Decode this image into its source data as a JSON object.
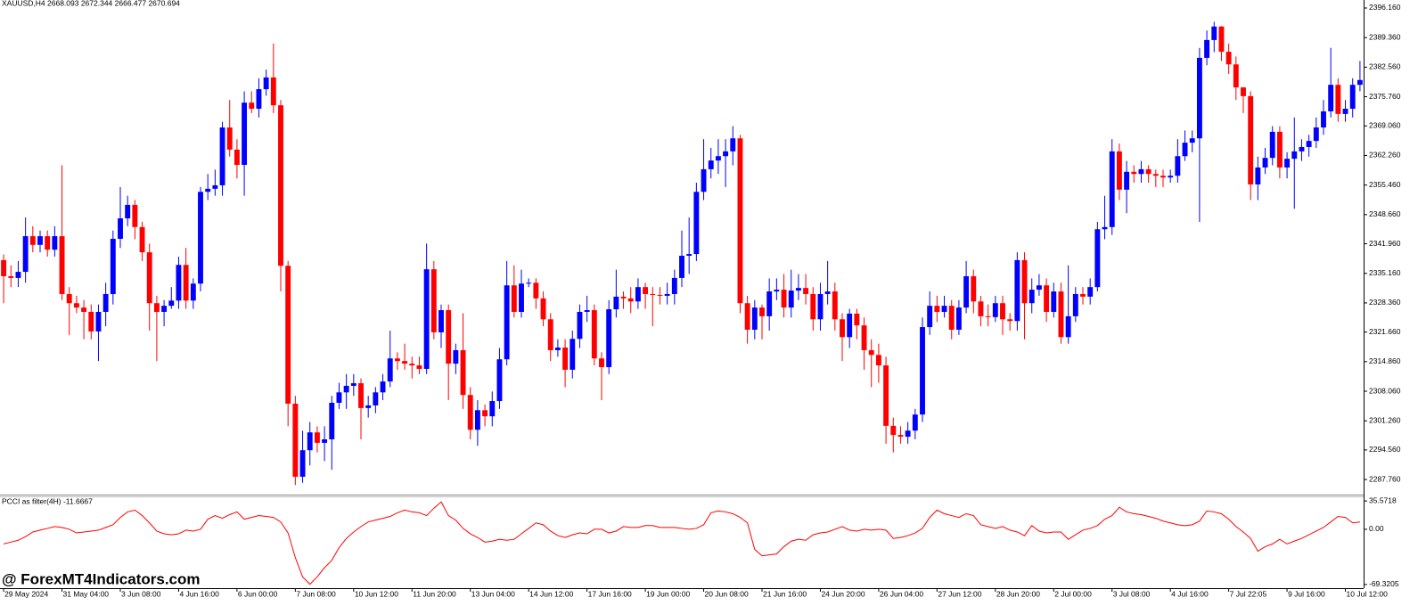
{
  "watermark": "@ ForexMT4Indicators.com",
  "chart_data": [
    {
      "type": "candlestick",
      "title": "XAUUSD,H4  2668.093 2672.344 2666.477 2670.694",
      "up_color": "#0000ff",
      "down_color": "#ff0000",
      "grid": false,
      "xlim": [
        -0.5,
        186.5
      ],
      "xticks": [
        {
          "value": 0,
          "label": "29 May 2024"
        },
        {
          "value": 8,
          "label": "31 May 04:00"
        },
        {
          "value": 16,
          "label": "3 Jun 08:00"
        },
        {
          "value": 24,
          "label": "4 Jun 16:00"
        },
        {
          "value": 32,
          "label": "6 Jun 00:00"
        },
        {
          "value": 40,
          "label": "7 Jun 08:00"
        },
        {
          "value": 48,
          "label": "10 Jun 12:00"
        },
        {
          "value": 56,
          "label": "11 Jun 20:00"
        },
        {
          "value": 64,
          "label": "13 Jun 04:00"
        },
        {
          "value": 72,
          "label": "14 Jun 12:00"
        },
        {
          "value": 80,
          "label": "17 Jun 16:00"
        },
        {
          "value": 88,
          "label": "19 Jun 00:00"
        },
        {
          "value": 96,
          "label": "20 Jun 08:00"
        },
        {
          "value": 104,
          "label": "21 Jun 16:00"
        },
        {
          "value": 112,
          "label": "24 Jun 20:00"
        },
        {
          "value": 120,
          "label": "26 Jun 04:00"
        },
        {
          "value": 128,
          "label": "27 Jun 12:00"
        },
        {
          "value": 136,
          "label": "28 Jun 20:00"
        },
        {
          "value": 144,
          "label": "2 Jul 00:00"
        },
        {
          "value": 152,
          "label": "3 Jul 08:00"
        },
        {
          "value": 160,
          "label": "4 Jul 16:00"
        },
        {
          "value": 168,
          "label": "7 Jul 22:05"
        },
        {
          "value": 176,
          "label": "9 Jul 16:00"
        },
        {
          "value": 184,
          "label": "10 Jul 12:00"
        }
      ],
      "ylim": [
        2284.3,
        2398.0
      ],
      "yticks": [
        {
          "value": 2396.16,
          "label": "2396.160"
        },
        {
          "value": 2389.36,
          "label": "2389.360"
        },
        {
          "value": 2382.56,
          "label": "2382.560"
        },
        {
          "value": 2375.76,
          "label": "2375.760"
        },
        {
          "value": 2369.06,
          "label": "2369.060"
        },
        {
          "value": 2362.26,
          "label": "2362.260"
        },
        {
          "value": 2355.46,
          "label": "2355.460"
        },
        {
          "value": 2348.66,
          "label": "2348.660"
        },
        {
          "value": 2341.96,
          "label": "2341.960"
        },
        {
          "value": 2335.16,
          "label": "2335.160"
        },
        {
          "value": 2328.36,
          "label": "2328.360"
        },
        {
          "value": 2321.66,
          "label": "2321.660"
        },
        {
          "value": 2314.86,
          "label": "2314.860"
        },
        {
          "value": 2308.06,
          "label": "2308.060"
        },
        {
          "value": 2301.26,
          "label": "2301.260"
        },
        {
          "value": 2294.56,
          "label": "2294.560"
        },
        {
          "value": 2287.76,
          "label": "2287.760"
        }
      ],
      "open": [
        2338.2,
        2334.5,
        2334.1,
        2335.5,
        2343.7,
        2341.7,
        2343.7,
        2340.6,
        2343.7,
        2330.4,
        2328.3,
        2327.3,
        2326.3,
        2321.8,
        2326.3,
        2330.4,
        2343.1,
        2347.8,
        2350.9,
        2345.8,
        2340.0,
        2328.3,
        2326.3,
        2327.7,
        2328.9,
        2337.1,
        2328.9,
        2332.8,
        2353.9,
        2354.6,
        2355.4,
        2368.7,
        2363.6,
        2360.1,
        2374.4,
        2373.0,
        2377.5,
        2380.2,
        2373.8,
        2336.9,
        2305.2,
        2288.4,
        2294.5,
        2298.6,
        2296.2,
        2297.0,
        2305.4,
        2307.8,
        2309.3,
        2309.9,
        2304.2,
        2304.8,
        2307.8,
        2310.3,
        2315.6,
        2315.0,
        2314.4,
        2314.0,
        2313.2,
        2336.1,
        2321.6,
        2326.7,
        2314.4,
        2317.5,
        2307.2,
        2299.2,
        2303.7,
        2302.3,
        2305.8,
        2315.4,
        2332.4,
        2326.3,
        2332.8,
        2333.0,
        2329.4,
        2324.6,
        2317.5,
        2318.1,
        2313.0,
        2320.1,
        2326.3,
        2326.7,
        2315.6,
        2313.6,
        2326.9,
        2329.8,
        2329.4,
        2328.7,
        2332.0,
        2330.4,
        2330.2,
        2330.0,
        2330.4,
        2334.1,
        2339.2,
        2339.6,
        2353.9,
        2359.1,
        2361.1,
        2362.1,
        2363.2,
        2366.2,
        2328.3,
        2322.2,
        2327.3,
        2325.3,
        2331.0,
        2331.4,
        2327.3,
        2331.2,
        2331.8,
        2330.4,
        2324.6,
        2330.4,
        2331.0,
        2324.6,
        2320.5,
        2325.9,
        2323.2,
        2317.5,
        2316.4,
        2314.0,
        2300.1,
        2298.0,
        2297.6,
        2299.0,
        2302.7,
        2322.8,
        2327.7,
        2326.3,
        2327.7,
        2322.2,
        2327.3,
        2334.5,
        2328.7,
        2325.3,
        2325.1,
        2328.3,
        2324.6,
        2324.2,
        2338.2,
        2328.3,
        2331.4,
        2332.4,
        2326.3,
        2331.0,
        2320.5,
        2325.3,
        2330.4,
        2329.8,
        2332.0,
        2345.3,
        2345.8,
        2363.2,
        2354.4,
        2358.5,
        2358.0,
        2359.1,
        2358.0,
        2357.6,
        2357.2,
        2357.6,
        2362.1,
        2365.2,
        2366.2,
        2384.7,
        2388.8,
        2391.9,
        2386.1,
        2383.2,
        2377.9,
        2375.9,
        2355.6,
        2359.5,
        2361.7,
        2367.7,
        2359.5,
        2361.5,
        2363.2,
        2364.2,
        2365.6,
        2368.7,
        2372.4,
        2378.5,
        2371.8,
        2373.0,
        2378.5
      ],
      "high": [
        2339.5,
        2337,
        2338,
        2348,
        2346,
        2345,
        2345,
        2346,
        2360,
        2332,
        2330,
        2329,
        2328,
        2328,
        2333,
        2345,
        2355,
        2353,
        2352,
        2347,
        2342,
        2330,
        2329,
        2332,
        2339,
        2341,
        2334,
        2355,
        2358,
        2359,
        2370,
        2375,
        2366,
        2377,
        2377,
        2380,
        2382,
        2388,
        2375,
        2338,
        2307,
        2299,
        2301,
        2300,
        2300,
        2307,
        2310,
        2312,
        2312,
        2311,
        2307,
        2309,
        2312,
        2322,
        2317,
        2319,
        2316,
        2316,
        2342,
        2338,
        2328,
        2328,
        2319,
        2326,
        2309,
        2306,
        2305,
        2308,
        2318,
        2338,
        2337,
        2336,
        2334,
        2334,
        2331,
        2326,
        2320,
        2320,
        2322,
        2328,
        2330,
        2328,
        2317,
        2329,
        2336,
        2331,
        2332,
        2334,
        2333,
        2332,
        2332,
        2333,
        2336,
        2345,
        2348,
        2356,
        2366,
        2364,
        2366,
        2366,
        2369,
        2367,
        2330,
        2329,
        2328,
        2334,
        2334,
        2335,
        2336,
        2335,
        2335,
        2332,
        2333,
        2338,
        2333,
        2326,
        2327,
        2327,
        2325,
        2320,
        2319,
        2316,
        2302,
        2300,
        2301,
        2304,
        2325,
        2331,
        2330,
        2330,
        2329,
        2329,
        2338,
        2336,
        2330,
        2328,
        2330,
        2330,
        2326,
        2340,
        2340,
        2334,
        2335,
        2334,
        2333,
        2333,
        2337,
        2332,
        2332,
        2334,
        2347,
        2353,
        2366,
        2365,
        2361,
        2360,
        2361,
        2360,
        2359,
        2359,
        2359,
        2366,
        2368,
        2368,
        2387,
        2391,
        2393,
        2392,
        2388,
        2385,
        2378,
        2377,
        2362,
        2364,
        2369,
        2369,
        2363,
        2371,
        2366,
        2367,
        2371,
        2375,
        2387,
        2380,
        2375,
        2380,
        2384
      ],
      "low": [
        2328.3,
        2332,
        2332,
        2333,
        2340,
        2340,
        2339,
        2339,
        2329,
        2321,
        2326,
        2320,
        2320,
        2315,
        2323,
        2328,
        2341,
        2346,
        2343,
        2338,
        2322,
        2315,
        2323,
        2327,
        2327,
        2327,
        2327,
        2331,
        2352,
        2353,
        2353,
        2362,
        2357,
        2353,
        2372,
        2371,
        2376,
        2372,
        2331,
        2300,
        2286.5,
        2287,
        2291,
        2294,
        2292,
        2290,
        2304,
        2304,
        2307,
        2297,
        2302,
        2303,
        2306,
        2309,
        2313,
        2313,
        2311,
        2312,
        2312,
        2320,
        2318,
        2306,
        2312,
        2304,
        2297,
        2295.5,
        2300,
        2300,
        2304,
        2314,
        2325,
        2325,
        2332,
        2327,
        2323,
        2315,
        2316,
        2309,
        2311,
        2318,
        2324,
        2314,
        2306,
        2312,
        2325,
        2327,
        2326,
        2327,
        2327,
        2323,
        2328,
        2328,
        2328,
        2332,
        2335,
        2338,
        2352,
        2357,
        2358,
        2355,
        2360,
        2326,
        2319,
        2320,
        2320,
        2322,
        2329,
        2325,
        2325,
        2329,
        2328,
        2322,
        2322,
        2328,
        2322,
        2315,
        2318,
        2320,
        2313,
        2309,
        2310,
        2296,
        2294,
        2296,
        2296,
        2297,
        2301,
        2321,
        2324,
        2325,
        2320,
        2321,
        2326,
        2326,
        2323,
        2323,
        2324,
        2321,
        2322,
        2322,
        2320,
        2326,
        2330,
        2324,
        2325,
        2319,
        2319,
        2324,
        2328,
        2328,
        2331,
        2343,
        2344,
        2352,
        2349,
        2356,
        2356,
        2356,
        2355,
        2355,
        2356,
        2356,
        2361,
        2363,
        2347,
        2383,
        2386,
        2384,
        2381,
        2375,
        2372,
        2352,
        2352,
        2358,
        2360,
        2357,
        2357,
        2350,
        2361,
        2362,
        2364,
        2367,
        2371,
        2370,
        2370,
        2371,
        2377
      ],
      "close": [
        2334.5,
        2334.1,
        2335.5,
        2343.7,
        2341.7,
        2343.7,
        2340.6,
        2343.7,
        2330.4,
        2328.3,
        2327.3,
        2326.3,
        2321.8,
        2326.3,
        2330.4,
        2343.1,
        2347.8,
        2350.9,
        2345.8,
        2340.0,
        2328.3,
        2326.3,
        2327.7,
        2328.9,
        2337.1,
        2328.9,
        2332.8,
        2353.9,
        2354.6,
        2355.4,
        2368.7,
        2363.6,
        2360.1,
        2374.4,
        2373.0,
        2377.5,
        2380.2,
        2373.8,
        2336.9,
        2305.2,
        2288.4,
        2294.5,
        2298.6,
        2296.2,
        2297.0,
        2305.4,
        2307.8,
        2309.3,
        2309.9,
        2304.2,
        2304.8,
        2307.8,
        2310.3,
        2315.6,
        2315.0,
        2314.4,
        2314.0,
        2313.2,
        2336.1,
        2321.6,
        2326.7,
        2314.4,
        2317.5,
        2307.2,
        2299.2,
        2303.7,
        2302.3,
        2305.8,
        2315.4,
        2332.4,
        2326.3,
        2332.8,
        2333.0,
        2329.4,
        2324.6,
        2317.5,
        2318.1,
        2313.0,
        2320.1,
        2326.3,
        2326.7,
        2315.6,
        2313.6,
        2326.9,
        2329.8,
        2329.4,
        2328.7,
        2332.0,
        2330.4,
        2330.2,
        2330.0,
        2330.4,
        2334.1,
        2339.2,
        2339.6,
        2353.9,
        2359.1,
        2361.1,
        2362.1,
        2363.2,
        2366.2,
        2328.3,
        2322.2,
        2327.3,
        2325.3,
        2331.0,
        2331.4,
        2327.3,
        2331.2,
        2331.8,
        2330.4,
        2324.6,
        2330.4,
        2331.0,
        2324.6,
        2320.5,
        2325.9,
        2323.2,
        2317.5,
        2316.4,
        2314.0,
        2300.1,
        2298.0,
        2297.6,
        2299.0,
        2302.7,
        2322.8,
        2327.7,
        2326.3,
        2327.7,
        2322.2,
        2327.3,
        2334.5,
        2328.7,
        2325.3,
        2325.1,
        2328.3,
        2324.6,
        2324.2,
        2338.2,
        2328.3,
        2331.4,
        2332.4,
        2326.3,
        2331.0,
        2320.5,
        2325.3,
        2330.4,
        2329.8,
        2332.0,
        2345.3,
        2345.8,
        2363.2,
        2354.4,
        2358.5,
        2358.0,
        2359.1,
        2358.0,
        2357.6,
        2357.2,
        2357.6,
        2362.1,
        2365.2,
        2366.2,
        2384.7,
        2388.8,
        2391.9,
        2386.1,
        2383.2,
        2377.9,
        2375.9,
        2355.6,
        2359.5,
        2361.7,
        2367.7,
        2359.5,
        2361.5,
        2363.2,
        2364.2,
        2365.6,
        2368.7,
        2372.4,
        2378.5,
        2371.8,
        2373.0,
        2378.5,
        2379.6
      ]
    },
    {
      "type": "line",
      "title": "PCCI as filter(4H) -11.6667",
      "color": "#ff0000",
      "grid": false,
      "xlim": [
        -0.5,
        186.5
      ],
      "ylim": [
        -73.9,
        41.3
      ],
      "yticks": [
        35.5718,
        {
          "value": 0,
          "label": "0.00"
        },
        -69.3205
      ],
      "values": [
        -18.4,
        -16.1,
        -13.8,
        -9.2,
        -3.4,
        -1.1,
        1.1,
        3.4,
        2.3,
        0,
        -4.6,
        -3.4,
        -2.3,
        -1.1,
        2.3,
        5.7,
        14.9,
        21.8,
        24.1,
        17.2,
        8.0,
        -2.3,
        -5.7,
        -6.9,
        -5.7,
        -1.1,
        -2.3,
        0,
        12.6,
        17.2,
        13.8,
        18.4,
        21.8,
        12.6,
        14.9,
        17.2,
        16.1,
        14.9,
        9.2,
        -4.6,
        -35.6,
        -59.7,
        -69,
        -59.7,
        -48.2,
        -39.0,
        -23.0,
        -11.5,
        -3.4,
        3.4,
        9.2,
        11.5,
        13.8,
        16.1,
        20.7,
        24.1,
        21.8,
        20.7,
        17.2,
        26.4,
        34.4,
        17.2,
        11.5,
        1.1,
        -5.7,
        -10.3,
        -16.1,
        -14.9,
        -12.6,
        -13.8,
        -12.6,
        -5.7,
        1.1,
        8.0,
        5.7,
        -2.3,
        -8.0,
        -10.3,
        -6.9,
        -4.6,
        -5.7,
        0,
        0,
        -4.6,
        -2.3,
        3.4,
        2.3,
        2.3,
        4.6,
        4.6,
        2.3,
        2.3,
        2.3,
        1.1,
        0,
        1.1,
        5.7,
        20.7,
        23.0,
        21.8,
        19.5,
        14.9,
        8.0,
        -25.3,
        -33.3,
        -32.1,
        -31.0,
        -21.8,
        -14.9,
        -12.6,
        -13.8,
        -6.9,
        -4.6,
        -3.4,
        0,
        3.4,
        -1.1,
        -2.3,
        0,
        -1.1,
        0,
        -1.1,
        -11.5,
        -10.3,
        -8.0,
        -4.6,
        1.1,
        14.9,
        24.1,
        19.5,
        17.2,
        14.9,
        19.5,
        17.2,
        5.7,
        3.4,
        1.1,
        3.4,
        -1.1,
        -3.4,
        -8.0,
        4.6,
        -2.3,
        -4.6,
        -3.4,
        -3.4,
        -12.6,
        -6.9,
        -1.1,
        1.1,
        4.6,
        12.6,
        17.2,
        27.6,
        21.8,
        19.5,
        18.4,
        16.1,
        13.8,
        10.3,
        8.0,
        5.7,
        4.6,
        5.7,
        10.3,
        23.0,
        21.8,
        19.5,
        12.6,
        3.4,
        -3.4,
        -11.5,
        -27.6,
        -21.8,
        -18.4,
        -12.6,
        -18.4,
        -14.9,
        -11.5,
        -6.9,
        -2.3,
        2.3,
        9.2,
        16.1,
        14.9,
        8.0,
        9.2
      ]
    }
  ]
}
